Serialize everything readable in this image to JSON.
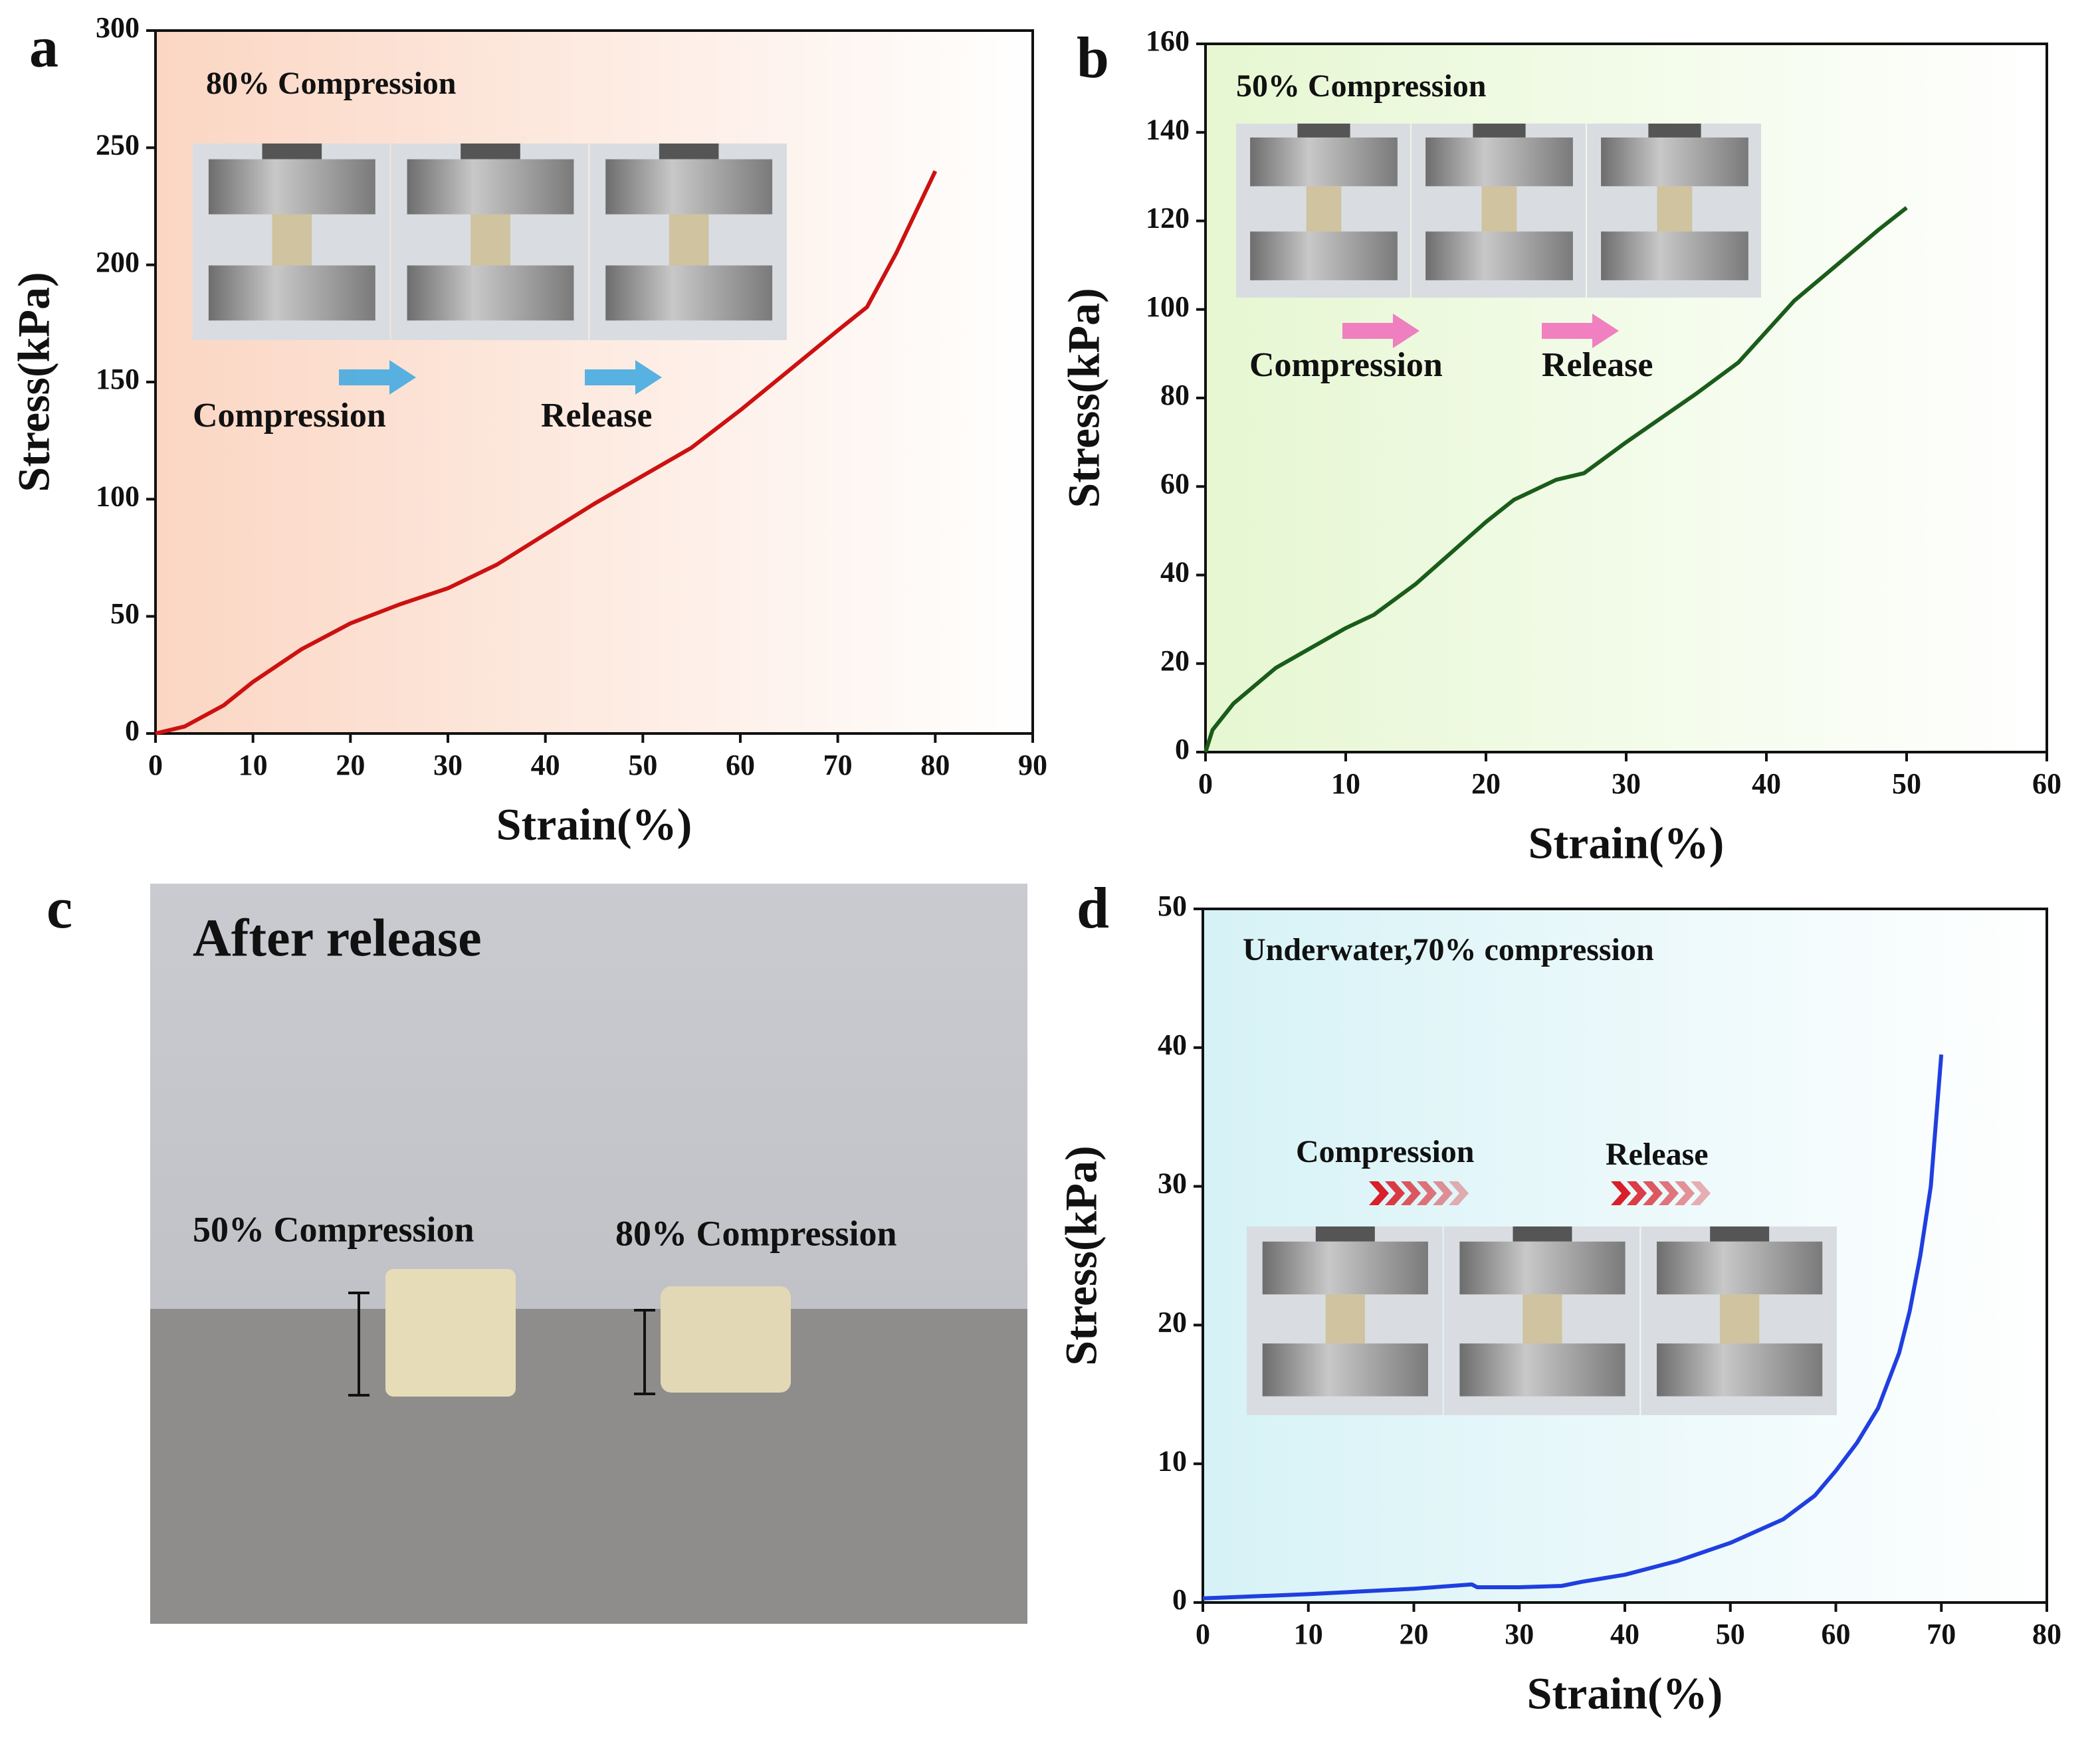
{
  "chart_data": [
    {
      "type": "line",
      "panel": "a",
      "xlabel": "Strain(%)",
      "ylabel": "Stress(kPa)",
      "annotations": [
        "80% Compression",
        "Compression",
        "Release"
      ],
      "color": "#cc1111",
      "x": [
        0,
        3,
        7,
        10,
        15,
        20,
        25,
        30,
        35,
        40,
        45,
        50,
        55,
        60,
        65,
        70,
        73,
        76,
        80
      ],
      "values": [
        0,
        3,
        12,
        22,
        36,
        47,
        55,
        62,
        72,
        85,
        98,
        110,
        122,
        138,
        155,
        172,
        182,
        205,
        240
      ],
      "xlim": [
        0,
        90
      ],
      "xticks": [
        0,
        10,
        20,
        30,
        40,
        50,
        60,
        70,
        80,
        90
      ],
      "ylim": [
        0,
        300
      ],
      "yticks": [
        0,
        50,
        100,
        150,
        200,
        250,
        300
      ]
    },
    {
      "type": "line",
      "panel": "b",
      "xlabel": "Strain(%)",
      "ylabel": "Stress(kPa)",
      "annotations": [
        "50% Compression",
        "Compression",
        "Release"
      ],
      "color": "#1a5c1a",
      "x": [
        0,
        0.5,
        2,
        5,
        10,
        12,
        15,
        20,
        22,
        25,
        27,
        30,
        35,
        38,
        42,
        45,
        48,
        50
      ],
      "values": [
        0,
        5,
        11,
        19,
        28,
        31,
        38,
        52,
        57,
        61.5,
        63,
        70,
        81,
        88,
        102,
        110,
        118,
        123
      ],
      "xlim": [
        0,
        60
      ],
      "xticks": [
        0,
        10,
        20,
        30,
        40,
        50,
        60
      ],
      "ylim": [
        0,
        160
      ],
      "yticks": [
        0,
        20,
        40,
        60,
        80,
        100,
        120,
        140,
        160
      ]
    },
    {
      "type": "line",
      "panel": "d",
      "xlabel": "Strain(%)",
      "ylabel": "Stress(kPa)",
      "annotations": [
        "Underwater,70% compression",
        "Compression",
        "Release"
      ],
      "color": "#1f3fe0",
      "x": [
        0,
        10,
        20,
        25.5,
        26,
        30,
        34,
        36,
        40,
        45,
        50,
        55,
        58,
        60,
        62,
        64,
        66,
        67,
        68,
        69,
        70
      ],
      "values": [
        0.3,
        0.6,
        1,
        1.3,
        1.1,
        1.1,
        1.2,
        1.5,
        2,
        3,
        4.3,
        6,
        7.7,
        9.5,
        11.5,
        14,
        18,
        21,
        25,
        30,
        39.5
      ],
      "xlim": [
        0,
        80
      ],
      "xticks": [
        0,
        10,
        20,
        30,
        40,
        50,
        60,
        70,
        80
      ],
      "ylim": [
        0,
        50
      ],
      "yticks": [
        0,
        10,
        20,
        30,
        40,
        50
      ]
    }
  ],
  "photo_panel": {
    "panel": "c",
    "title": "After release",
    "labels": [
      "50% Compression",
      "80% Compression"
    ]
  }
}
